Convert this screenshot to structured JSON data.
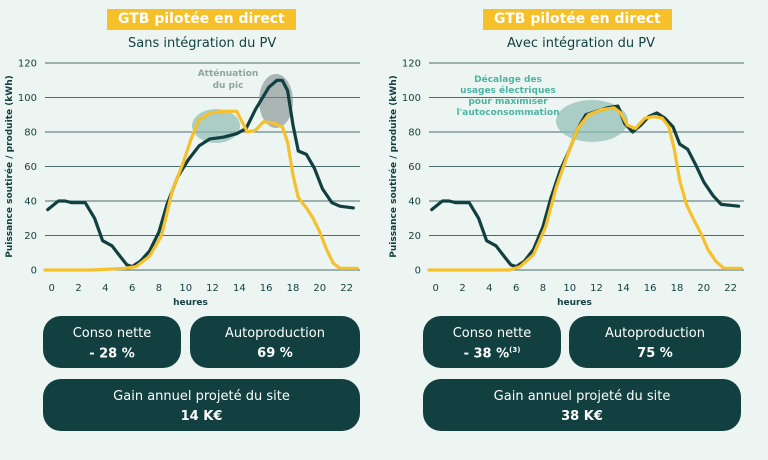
{
  "panels": [
    {
      "badge": "GTB pilotée en direct",
      "subtitle": "Sans intégration du PV",
      "annotation": [
        "Atténuation",
        "du pic"
      ],
      "kpis": {
        "conso_label": "Conso nette",
        "conso_value": "- 28 %",
        "conso_sup": "",
        "autoprod_label": "Autoproduction",
        "autoprod_value": "69 %",
        "gain_label": "Gain annuel projeté du site",
        "gain_value": "14 K€"
      }
    },
    {
      "badge": "GTB pilotée en direct",
      "subtitle": "Avec intégration du PV",
      "annotation": [
        "Décalage des",
        "usages électriques",
        "pour maximiser",
        "l'autoconsommation"
      ],
      "kpis": {
        "conso_label": "Conso nette",
        "conso_value": "- 38 %",
        "conso_sup": "(3)",
        "autoprod_label": "Autoproduction",
        "autoprod_value": "75 %",
        "gain_label": "Gain annuel projeté du site",
        "gain_value": "38 K€"
      }
    }
  ],
  "colors": {
    "consumption": "#123f3f",
    "production": "#f6c02b",
    "badge": "#f6c02b",
    "highlight": "#8fbcb3",
    "peak": "#7e8c8a",
    "annotation_left": "#8fa5a2",
    "annotation_right": "#4fb3a4"
  },
  "chart_data": [
    {
      "type": "line",
      "title": "Sans intégration du PV",
      "xlabel": "heures",
      "ylabel": "Puissance soutirée / produite (kWh)",
      "xlim": [
        -0.5,
        23
      ],
      "ylim": [
        0,
        120
      ],
      "xticks": [
        0,
        2,
        4,
        6,
        8,
        10,
        12,
        14,
        16,
        18,
        20,
        22
      ],
      "yticks": [
        0,
        20,
        40,
        60,
        80,
        100,
        120
      ],
      "series": [
        {
          "role": "consumption",
          "points": [
            [
              -0.3,
              35
            ],
            [
              0.5,
              40
            ],
            [
              1,
              40
            ],
            [
              1.5,
              39
            ],
            [
              2.5,
              39
            ],
            [
              3.2,
              30
            ],
            [
              3.8,
              17
            ],
            [
              4.5,
              14
            ],
            [
              5,
              9
            ],
            [
              5.6,
              3
            ],
            [
              6,
              2
            ],
            [
              6.6,
              5
            ],
            [
              7.3,
              11
            ],
            [
              8,
              22
            ],
            [
              8.6,
              38
            ],
            [
              9.4,
              54
            ],
            [
              10.2,
              64
            ],
            [
              11,
              72
            ],
            [
              11.8,
              76
            ],
            [
              12.8,
              77
            ],
            [
              13.8,
              79
            ],
            [
              14.5,
              82
            ],
            [
              15.2,
              93
            ],
            [
              16.2,
              106
            ],
            [
              16.8,
              110
            ],
            [
              17.2,
              110
            ],
            [
              17.6,
              104
            ],
            [
              18,
              84
            ],
            [
              18.4,
              69
            ],
            [
              19,
              67
            ],
            [
              19.6,
              59
            ],
            [
              20.2,
              47
            ],
            [
              20.9,
              39
            ],
            [
              21.5,
              37
            ],
            [
              22.5,
              36
            ]
          ]
        },
        {
          "role": "production",
          "points": [
            [
              -0.5,
              0
            ],
            [
              3,
              0
            ],
            [
              5.5,
              1
            ],
            [
              6.3,
              2
            ],
            [
              7.3,
              8
            ],
            [
              8.2,
              20
            ],
            [
              9,
              46
            ],
            [
              9.8,
              62
            ],
            [
              10.4,
              76
            ],
            [
              11,
              87
            ],
            [
              11.8,
              91
            ],
            [
              12.8,
              92
            ],
            [
              13.8,
              92
            ],
            [
              14.2,
              86
            ],
            [
              14.6,
              80
            ],
            [
              15.2,
              81
            ],
            [
              15.8,
              86
            ],
            [
              16.6,
              85
            ],
            [
              17.2,
              83
            ],
            [
              17.6,
              74
            ],
            [
              18,
              55
            ],
            [
              18.4,
              42
            ],
            [
              19,
              36
            ],
            [
              19.5,
              30
            ],
            [
              20,
              22
            ],
            [
              20.5,
              12
            ],
            [
              21,
              4
            ],
            [
              21.5,
              1
            ],
            [
              22.8,
              1
            ]
          ]
        }
      ]
    },
    {
      "type": "line",
      "title": "Avec intégration du PV",
      "xlabel": "heures",
      "ylabel": "Puissance soutirée / produite (kWh)",
      "xlim": [
        -0.5,
        23
      ],
      "ylim": [
        0,
        120
      ],
      "xticks": [
        0,
        2,
        4,
        6,
        8,
        10,
        12,
        14,
        16,
        18,
        20,
        22
      ],
      "yticks": [
        0,
        20,
        40,
        60,
        80,
        100,
        120
      ],
      "series": [
        {
          "role": "consumption",
          "points": [
            [
              -0.3,
              35
            ],
            [
              0.5,
              40
            ],
            [
              1,
              40
            ],
            [
              1.5,
              39
            ],
            [
              2.5,
              39
            ],
            [
              3.2,
              30
            ],
            [
              3.8,
              17
            ],
            [
              4.5,
              14
            ],
            [
              5,
              9
            ],
            [
              5.6,
              3
            ],
            [
              6,
              2
            ],
            [
              6.6,
              5
            ],
            [
              7.3,
              12
            ],
            [
              8,
              25
            ],
            [
              8.6,
              42
            ],
            [
              9.3,
              58
            ],
            [
              10,
              70
            ],
            [
              10.6,
              82
            ],
            [
              11.2,
              90
            ],
            [
              12,
              92
            ],
            [
              12.8,
              94
            ],
            [
              13.6,
              95
            ],
            [
              14.1,
              85
            ],
            [
              14.7,
              80
            ],
            [
              15.3,
              84
            ],
            [
              15.9,
              89
            ],
            [
              16.5,
              91
            ],
            [
              17.1,
              88
            ],
            [
              17.7,
              83
            ],
            [
              18.2,
              73
            ],
            [
              18.8,
              70
            ],
            [
              19.4,
              61
            ],
            [
              20,
              51
            ],
            [
              20.7,
              43
            ],
            [
              21.3,
              38
            ],
            [
              22.6,
              37
            ]
          ]
        },
        {
          "role": "production",
          "points": [
            [
              -0.5,
              0
            ],
            [
              3,
              0
            ],
            [
              5.5,
              0
            ],
            [
              6.3,
              2
            ],
            [
              7.3,
              9
            ],
            [
              8.2,
              25
            ],
            [
              9,
              48
            ],
            [
              9.8,
              66
            ],
            [
              10.6,
              82
            ],
            [
              11.4,
              90
            ],
            [
              12.4,
              93
            ],
            [
              13.3,
              94
            ],
            [
              13.8,
              91
            ],
            [
              14.3,
              84
            ],
            [
              14.9,
              82
            ],
            [
              15.6,
              88
            ],
            [
              16.3,
              89
            ],
            [
              16.9,
              88
            ],
            [
              17.4,
              83
            ],
            [
              17.8,
              70
            ],
            [
              18.2,
              52
            ],
            [
              18.7,
              38
            ],
            [
              19.2,
              30
            ],
            [
              19.8,
              21
            ],
            [
              20.3,
              12
            ],
            [
              20.9,
              5
            ],
            [
              21.5,
              1
            ],
            [
              22.8,
              1
            ]
          ]
        }
      ]
    }
  ]
}
